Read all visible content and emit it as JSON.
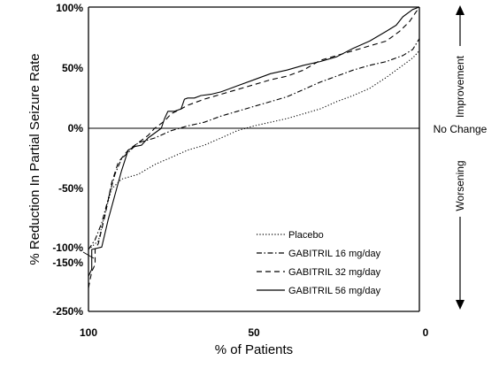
{
  "chart_data": {
    "type": "line",
    "ylabel": "% Reduction In Partial Seizure Rate",
    "xlabel": "% of Patients",
    "x_reversed": true,
    "xlim": [
      100,
      0
    ],
    "x_ticks": [
      "100",
      "50",
      "0"
    ],
    "y_ticks": [
      "100%",
      "50%",
      "0%",
      "-50%",
      "-100%",
      "-150%",
      "-250%"
    ],
    "y_axis_break": "between -100% and -150%",
    "zero_line_label": "No Change",
    "side_labels": {
      "upper": "Improvement",
      "lower": "Worsening"
    },
    "legend_position": "lower-right",
    "series": [
      {
        "name": "Placebo",
        "style": "dotted",
        "points": [
          [
            100,
            -100
          ],
          [
            97,
            -93
          ],
          [
            95,
            -70
          ],
          [
            93,
            -50
          ],
          [
            90,
            -42
          ],
          [
            85,
            -38
          ],
          [
            80,
            -30
          ],
          [
            75,
            -24
          ],
          [
            70,
            -18
          ],
          [
            65,
            -14
          ],
          [
            60,
            -8
          ],
          [
            55,
            -2
          ],
          [
            50,
            2
          ],
          [
            45,
            5
          ],
          [
            40,
            8
          ],
          [
            35,
            12
          ],
          [
            30,
            16
          ],
          [
            25,
            22
          ],
          [
            20,
            27
          ],
          [
            15,
            33
          ],
          [
            10,
            42
          ],
          [
            5,
            52
          ],
          [
            2,
            58
          ],
          [
            0,
            64
          ]
        ]
      },
      {
        "name": "GABITRIL 16 mg/day",
        "style": "dashdot",
        "points": [
          [
            100,
            -100
          ],
          [
            98,
            -92
          ],
          [
            96,
            -78
          ],
          [
            94,
            -58
          ],
          [
            92,
            -38
          ],
          [
            90,
            -25
          ],
          [
            88,
            -20
          ],
          [
            85,
            -12
          ],
          [
            80,
            -8
          ],
          [
            75,
            -2
          ],
          [
            70,
            2
          ],
          [
            65,
            5
          ],
          [
            60,
            10
          ],
          [
            55,
            14
          ],
          [
            50,
            18
          ],
          [
            45,
            22
          ],
          [
            40,
            26
          ],
          [
            35,
            32
          ],
          [
            30,
            38
          ],
          [
            25,
            43
          ],
          [
            20,
            48
          ],
          [
            15,
            52
          ],
          [
            10,
            55
          ],
          [
            5,
            60
          ],
          [
            2,
            65
          ],
          [
            0,
            74
          ]
        ]
      },
      {
        "name": "GABITRIL 32 mg/day",
        "style": "dashed",
        "points": [
          [
            100,
            -200
          ],
          [
            99,
            -165
          ],
          [
            98,
            -150
          ],
          [
            98,
            -100
          ],
          [
            97,
            -95
          ],
          [
            95,
            -72
          ],
          [
            93,
            -45
          ],
          [
            91,
            -28
          ],
          [
            88,
            -18
          ],
          [
            85,
            -12
          ],
          [
            82,
            -6
          ],
          [
            80,
            0
          ],
          [
            77,
            6
          ],
          [
            75,
            12
          ],
          [
            72,
            16
          ],
          [
            70,
            19
          ],
          [
            65,
            24
          ],
          [
            60,
            28
          ],
          [
            55,
            32
          ],
          [
            50,
            36
          ],
          [
            45,
            40
          ],
          [
            40,
            43
          ],
          [
            35,
            48
          ],
          [
            30,
            56
          ],
          [
            25,
            60
          ],
          [
            20,
            64
          ],
          [
            15,
            68
          ],
          [
            10,
            72
          ],
          [
            6,
            80
          ],
          [
            3,
            88
          ],
          [
            0,
            100
          ]
        ]
      },
      {
        "name": "GABITRIL 56 mg/day",
        "style": "solid",
        "points": [
          [
            100,
            -175
          ],
          [
            99,
            -160
          ],
          [
            99,
            -100
          ],
          [
            96,
            -98
          ],
          [
            94,
            -75
          ],
          [
            92,
            -55
          ],
          [
            90,
            -35
          ],
          [
            88,
            -18
          ],
          [
            86,
            -15
          ],
          [
            84,
            -14
          ],
          [
            82,
            -8
          ],
          [
            80,
            -4
          ],
          [
            78,
            0
          ],
          [
            77,
            8
          ],
          [
            76,
            14
          ],
          [
            75,
            14
          ],
          [
            74,
            14
          ],
          [
            72,
            16
          ],
          [
            71,
            24
          ],
          [
            70,
            25
          ],
          [
            68,
            25
          ],
          [
            66,
            27
          ],
          [
            63,
            28
          ],
          [
            60,
            30
          ],
          [
            55,
            35
          ],
          [
            50,
            40
          ],
          [
            45,
            45
          ],
          [
            40,
            48
          ],
          [
            35,
            52
          ],
          [
            30,
            55
          ],
          [
            25,
            59
          ],
          [
            20,
            66
          ],
          [
            15,
            72
          ],
          [
            10,
            80
          ],
          [
            7,
            85
          ],
          [
            5,
            92
          ],
          [
            2,
            98
          ],
          [
            0,
            100
          ]
        ]
      }
    ]
  }
}
